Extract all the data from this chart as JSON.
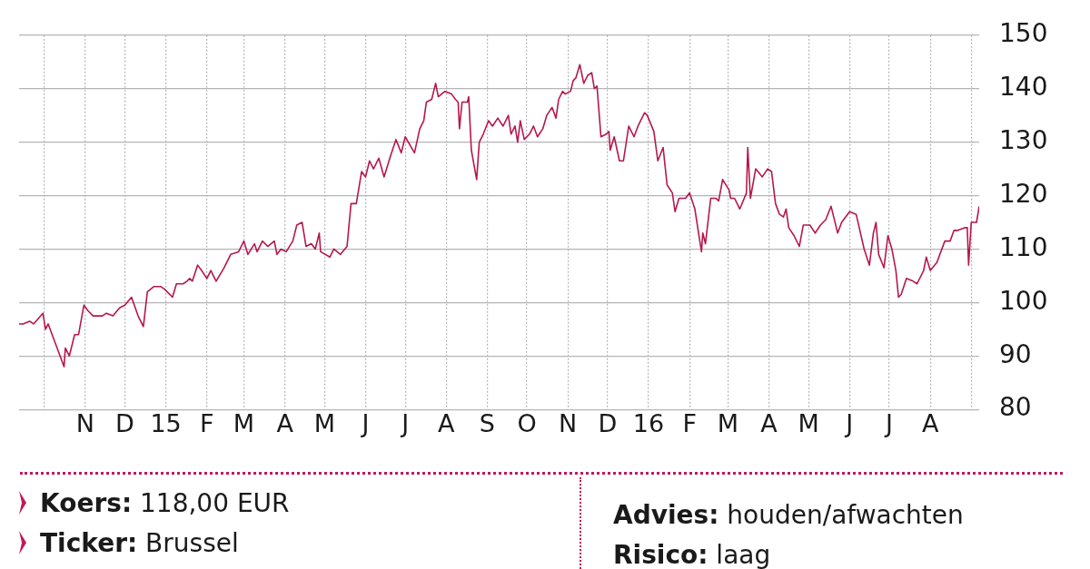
{
  "chart_data": {
    "type": "line",
    "x": [
      "2014-09-12",
      "2014-09-15",
      "2014-09-20",
      "2014-09-23",
      "2014-09-30",
      "2014-10-02",
      "2014-10-04",
      "2014-10-07",
      "2014-10-16",
      "2014-10-17",
      "2014-10-20",
      "2014-10-24",
      "2014-10-27",
      "2014-10-31",
      "2014-11-03",
      "2014-11-07",
      "2014-11-14",
      "2014-11-17",
      "2014-11-22",
      "2014-11-27",
      "2014-12-01",
      "2014-12-06",
      "2014-12-11",
      "2014-12-15",
      "2014-12-18",
      "2014-12-23",
      "2014-12-28",
      "2014-12-31",
      "2015-01-06",
      "2015-01-09",
      "2015-01-14",
      "2015-01-17",
      "2015-01-19",
      "2015-01-21",
      "2015-01-25",
      "2015-01-28",
      "2015-02-01",
      "2015-02-04",
      "2015-02-08",
      "2015-02-14",
      "2015-02-19",
      "2015-02-25",
      "2015-03-01",
      "2015-03-04",
      "2015-03-09",
      "2015-03-11",
      "2015-03-15",
      "2015-03-19",
      "2015-03-24",
      "2015-03-26",
      "2015-03-29",
      "2015-04-02",
      "2015-04-07",
      "2015-04-10",
      "2015-04-14",
      "2015-04-17",
      "2015-04-21",
      "2015-04-24",
      "2015-04-27",
      "2015-04-28",
      "2015-05-05",
      "2015-05-08",
      "2015-05-13",
      "2015-05-18",
      "2015-05-21",
      "2015-05-25",
      "2015-05-29",
      "2015-06-01",
      "2015-06-04",
      "2015-06-07",
      "2015-06-11",
      "2015-06-15",
      "2015-06-20",
      "2015-06-24",
      "2015-06-28",
      "2015-07-01",
      "2015-07-08",
      "2015-07-12",
      "2015-07-15",
      "2015-07-17",
      "2015-07-21",
      "2015-07-24",
      "2015-07-26",
      "2015-07-31",
      "2015-08-05",
      "2015-08-08",
      "2015-08-10",
      "2015-08-11",
      "2015-08-13",
      "2015-08-17",
      "2015-08-18",
      "2015-08-20",
      "2015-08-24",
      "2015-08-26",
      "2015-08-29",
      "2015-09-02",
      "2015-09-05",
      "2015-09-09",
      "2015-09-13",
      "2015-09-17",
      "2015-09-19",
      "2015-09-22",
      "2015-09-24",
      "2015-09-26",
      "2015-09-29",
      "2015-10-03",
      "2015-10-06",
      "2015-10-09",
      "2015-10-13",
      "2015-10-16",
      "2015-10-20",
      "2015-10-23",
      "2015-10-25",
      "2015-10-28",
      "2015-10-30",
      "2015-11-03",
      "2015-11-05",
      "2015-11-07",
      "2015-11-10",
      "2015-11-13",
      "2015-11-16",
      "2015-11-19",
      "2015-11-21",
      "2015-11-23",
      "2015-11-26",
      "2015-11-30",
      "2015-12-02",
      "2015-12-03",
      "2015-12-06",
      "2015-12-10",
      "2015-12-13",
      "2015-12-17",
      "2015-12-21",
      "2015-12-24",
      "2015-12-29",
      "2015-12-31",
      "2016-01-05",
      "2016-01-08",
      "2016-01-12",
      "2016-01-15",
      "2016-01-19",
      "2016-01-21",
      "2016-01-24",
      "2016-01-29",
      "2016-02-01",
      "2016-02-05",
      "2016-02-10",
      "2016-02-11",
      "2016-02-13",
      "2016-02-17",
      "2016-02-21",
      "2016-02-23",
      "2016-02-26",
      "2016-03-02",
      "2016-03-03",
      "2016-03-06",
      "2016-03-10",
      "2016-03-15",
      "2016-03-16",
      "2016-03-18",
      "2016-03-22",
      "2016-03-27",
      "2016-03-31",
      "2016-04-03",
      "2016-04-06",
      "2016-04-09",
      "2016-04-12",
      "2016-04-14",
      "2016-04-16",
      "2016-04-20",
      "2016-04-24",
      "2016-04-27",
      "2016-05-02",
      "2016-05-06",
      "2016-05-10",
      "2016-05-14",
      "2016-05-18",
      "2016-05-23",
      "2016-05-26",
      "2016-06-01",
      "2016-06-06",
      "2016-06-12",
      "2016-06-16",
      "2016-06-19",
      "2016-06-21",
      "2016-06-23",
      "2016-06-27",
      "2016-06-30",
      "2016-07-03",
      "2016-07-06",
      "2016-07-08",
      "2016-07-10",
      "2016-07-14",
      "2016-07-19",
      "2016-07-22",
      "2016-07-27",
      "2016-07-29",
      "2016-08-01",
      "2016-08-06",
      "2016-08-12",
      "2016-08-16",
      "2016-08-19",
      "2016-08-22",
      "2016-08-27",
      "2016-08-29",
      "2016-08-30",
      "2016-09-01",
      "2016-09-05",
      "2016-09-07"
    ],
    "series": [
      {
        "color": "#b5174f",
        "values": [
          96,
          96,
          96.5,
          96,
          98,
          95,
          96,
          94,
          88,
          91.5,
          90,
          94,
          94,
          99.5,
          98.5,
          97.5,
          97.5,
          98,
          97.5,
          99,
          99.5,
          101,
          97.5,
          95.5,
          102,
          103,
          103,
          102.5,
          101,
          103.5,
          103.5,
          104,
          104.5,
          104,
          107,
          106,
          104.5,
          106,
          104,
          106.5,
          109,
          109.5,
          111.5,
          109,
          111,
          109.5,
          111.5,
          110.5,
          111.5,
          109,
          110,
          109.5,
          111.5,
          114.5,
          115,
          110.5,
          111,
          110,
          113,
          109.5,
          108.5,
          110,
          109,
          110.5,
          118.5,
          118.5,
          124.5,
          123.5,
          126.5,
          125,
          127,
          123.5,
          127.5,
          130.5,
          128,
          131,
          128,
          132.5,
          134,
          137.5,
          138,
          141,
          138.5,
          139.5,
          139,
          138,
          137.5,
          132.5,
          137.5,
          137.5,
          138.5,
          128.5,
          123,
          130,
          131.5,
          134,
          133,
          134.5,
          133,
          135,
          131.5,
          133,
          130,
          134,
          130.5,
          131.5,
          133,
          131,
          132.5,
          135,
          136.5,
          134.5,
          138,
          139.5,
          139,
          139.5,
          141.5,
          142,
          144.5,
          141,
          142.5,
          143,
          140,
          140.5,
          131,
          131.5,
          132,
          128.5,
          131,
          126.5,
          126.5,
          133,
          131,
          133,
          135.5,
          135,
          132,
          126.5,
          129,
          122,
          120.5,
          117,
          119.5,
          119.5,
          120.5,
          117.5,
          109.5,
          113,
          111,
          119.5,
          119.5,
          119,
          123,
          121,
          119.5,
          119.5,
          117.5,
          120.5,
          129,
          119.5,
          125,
          123.5,
          125,
          124.5,
          118.5,
          116.5,
          116,
          117.5,
          114,
          112.5,
          110.5,
          114.5,
          114.5,
          113,
          114.5,
          115.5,
          118,
          113,
          115,
          117,
          116.5,
          110,
          107,
          113,
          115,
          109,
          106.5,
          112.5,
          110,
          106,
          101,
          101.5,
          104.5,
          104,
          103.5,
          106,
          108.5,
          106,
          107.5,
          111.5,
          111.5,
          113.5,
          113.5,
          114,
          114,
          107,
          115,
          115,
          118
        ]
      }
    ],
    "xlim": [
      "2014-09-12",
      "2016-09-07"
    ],
    "xticks": [
      {
        "value": "2014-10-01",
        "label": null
      },
      {
        "value": "2014-11-01",
        "label": "N"
      },
      {
        "value": "2014-12-01",
        "label": "D"
      },
      {
        "value": "2015-01-01",
        "label": "15"
      },
      {
        "value": "2015-02-01",
        "label": "F"
      },
      {
        "value": "2015-03-01",
        "label": "M"
      },
      {
        "value": "2015-04-01",
        "label": "A"
      },
      {
        "value": "2015-05-01",
        "label": "M"
      },
      {
        "value": "2015-06-01",
        "label": "J"
      },
      {
        "value": "2015-07-01",
        "label": "J"
      },
      {
        "value": "2015-08-01",
        "label": "A"
      },
      {
        "value": "2015-09-01",
        "label": "S"
      },
      {
        "value": "2015-10-01",
        "label": "O"
      },
      {
        "value": "2015-11-01",
        "label": "N"
      },
      {
        "value": "2015-12-01",
        "label": "D"
      },
      {
        "value": "2016-01-01",
        "label": "16"
      },
      {
        "value": "2016-02-01",
        "label": "F"
      },
      {
        "value": "2016-03-01",
        "label": "M"
      },
      {
        "value": "2016-04-01",
        "label": "A"
      },
      {
        "value": "2016-05-01",
        "label": "M"
      },
      {
        "value": "2016-06-01",
        "label": "J"
      },
      {
        "value": "2016-07-01",
        "label": "J"
      },
      {
        "value": "2016-08-01",
        "label": "A"
      },
      {
        "value": "2016-09-01",
        "label": null
      }
    ],
    "ylim": [
      80,
      150
    ],
    "yticks": [
      80,
      90,
      100,
      110,
      120,
      130,
      140,
      150
    ],
    "grid": true,
    "marker": "none",
    "line_style": "solid",
    "annotations": [
      "Koers: 118,00 EUR",
      "Ticker: Brussel",
      "Advies: houden/afwachten",
      "Risico: laag"
    ]
  }
}
